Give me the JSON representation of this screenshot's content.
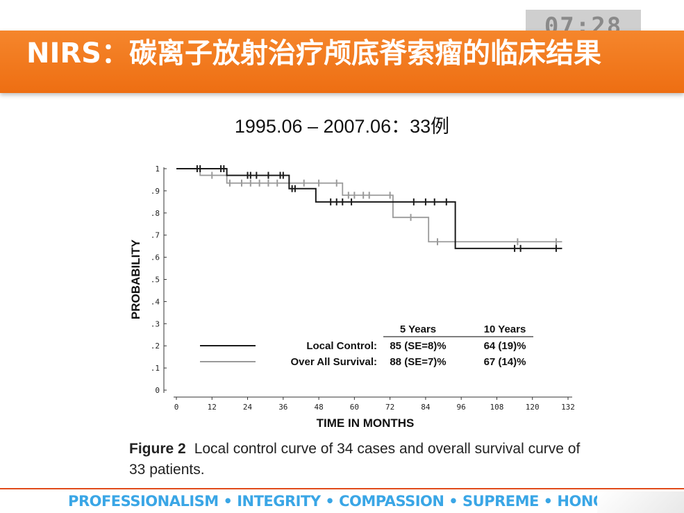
{
  "timer": "07:28",
  "banner_title": "NIRS：碳离子放射治疗颅底脊索瘤的临床结果",
  "subtitle": "1995.06 – 2007.06：33例",
  "caption": {
    "figure_label": "Figure 2",
    "text": "Local control curve of 34 cases and overall survival curve of 33 patients."
  },
  "footer": "PROFESSIONALISM • INTEGRITY • COMPASSION • SUPREME • HONOR",
  "colors": {
    "banner": "#f07a1e",
    "footer_text": "#3aa6e6",
    "local_control": "#1a1a1a",
    "overall_survival": "#9a9a9a"
  },
  "chart_data": {
    "type": "line",
    "step": true,
    "xlabel": "TIME  IN MONTHS",
    "ylabel": "PROBABILITY",
    "xlim": [
      0,
      132
    ],
    "ylim": [
      0,
      1
    ],
    "xticks": [
      0,
      12,
      24,
      36,
      48,
      60,
      72,
      84,
      96,
      108,
      120,
      132
    ],
    "xtick_labels": [
      "0",
      "12",
      "24",
      "36",
      "48",
      "60",
      "72",
      "84",
      "96",
      "108",
      "120",
      "132"
    ],
    "yticks": [
      0,
      0.1,
      0.2,
      0.3,
      0.4,
      0.5,
      0.6,
      0.7,
      0.8,
      0.9,
      1.0
    ],
    "ytick_labels": [
      "0",
      ".1",
      ".2",
      ".3",
      ".4",
      ".5",
      ".6",
      ".7",
      ".8",
      ".9",
      "1"
    ],
    "table": {
      "headers": [
        "",
        "5 Years",
        "10 Years"
      ],
      "rows": [
        [
          "Local Control:",
          "85 (SE=8)%",
          "64 (19)%"
        ],
        [
          "Over All Survival:",
          "88 (SE=7)%",
          "67 (14)%"
        ]
      ]
    },
    "series": [
      {
        "key": "local_control",
        "color": "#1a1a1a",
        "steps": [
          [
            0,
            1.0
          ],
          [
            17,
            0.97
          ],
          [
            38,
            0.91
          ],
          [
            47,
            0.85
          ],
          [
            94,
            0.64
          ],
          [
            130,
            0.64
          ]
        ],
        "censored": [
          [
            7,
            1.0
          ],
          [
            8,
            1.0
          ],
          [
            15,
            1.0
          ],
          [
            16,
            1.0
          ],
          [
            24,
            0.97
          ],
          [
            25,
            0.97
          ],
          [
            27,
            0.97
          ],
          [
            31,
            0.97
          ],
          [
            35,
            0.97
          ],
          [
            36,
            0.97
          ],
          [
            39,
            0.91
          ],
          [
            40,
            0.91
          ],
          [
            52,
            0.85
          ],
          [
            54,
            0.85
          ],
          [
            56,
            0.85
          ],
          [
            59,
            0.85
          ],
          [
            80,
            0.85
          ],
          [
            84,
            0.85
          ],
          [
            87,
            0.85
          ],
          [
            91,
            0.85
          ],
          [
            114,
            0.64
          ],
          [
            116,
            0.64
          ],
          [
            128,
            0.64
          ]
        ]
      },
      {
        "key": "overall_survival",
        "color": "#9a9a9a",
        "steps": [
          [
            0,
            1.0
          ],
          [
            8,
            0.97
          ],
          [
            17,
            0.935
          ],
          [
            56,
            0.88
          ],
          [
            73,
            0.78
          ],
          [
            85,
            0.67
          ],
          [
            130,
            0.67
          ]
        ],
        "censored": [
          [
            12,
            0.97
          ],
          [
            18,
            0.935
          ],
          [
            22,
            0.935
          ],
          [
            25,
            0.935
          ],
          [
            28,
            0.935
          ],
          [
            31,
            0.935
          ],
          [
            34,
            0.935
          ],
          [
            43,
            0.935
          ],
          [
            48,
            0.935
          ],
          [
            54,
            0.935
          ],
          [
            58,
            0.88
          ],
          [
            60,
            0.88
          ],
          [
            63,
            0.88
          ],
          [
            65,
            0.88
          ],
          [
            72,
            0.88
          ],
          [
            79,
            0.78
          ],
          [
            88,
            0.67
          ],
          [
            115,
            0.67
          ],
          [
            128,
            0.67
          ]
        ]
      }
    ]
  }
}
